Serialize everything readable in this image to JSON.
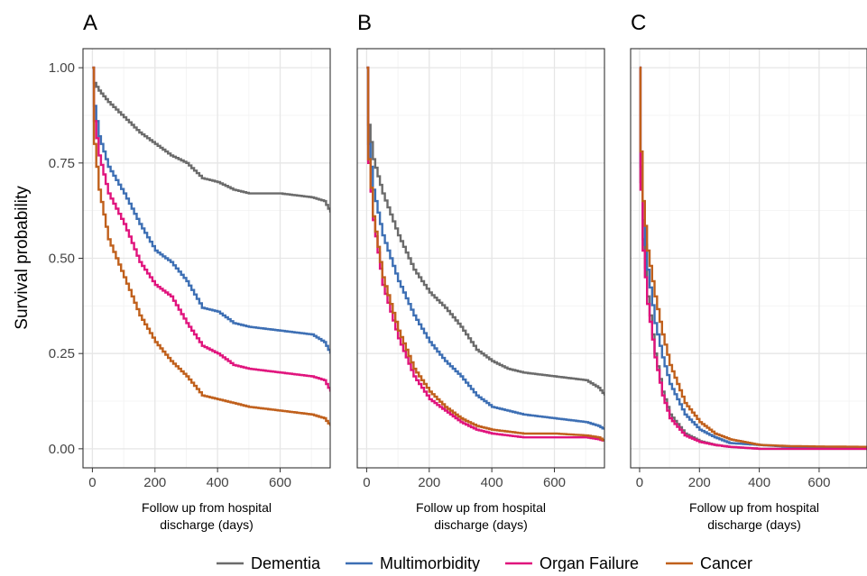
{
  "chart_data": {
    "type": "line",
    "ylabel": "Survival probability",
    "xlabel_line1": "Follow up from hospital",
    "xlabel_line2": "discharge (days)",
    "xlim": [
      -30,
      760
    ],
    "ylim": [
      -0.05,
      1.05
    ],
    "xticks": [
      0,
      200,
      400,
      600
    ],
    "xtick_labels": [
      "0",
      "200",
      "400",
      "600"
    ],
    "yticks": [
      0.0,
      0.25,
      0.5,
      0.75,
      1.0
    ],
    "ytick_labels": [
      "0.00",
      "0.25",
      "0.50",
      "0.75",
      "1.00"
    ],
    "grid": true,
    "legend_position": "bottom",
    "legend": [
      {
        "name": "Dementia",
        "color": "#6b6b6b"
      },
      {
        "name": "Multimorbidity",
        "color": "#3d6fb4"
      },
      {
        "name": "Organ Failure",
        "color": "#e0147d"
      },
      {
        "name": "Cancer",
        "color": "#c0601c"
      }
    ],
    "panels": [
      {
        "label": "A",
        "series": [
          {
            "name": "Dementia",
            "color": "#6b6b6b",
            "points": [
              [
                0,
                1.0
              ],
              [
                5,
                0.96
              ],
              [
                20,
                0.94
              ],
              [
                50,
                0.91
              ],
              [
                100,
                0.87
              ],
              [
                150,
                0.83
              ],
              [
                200,
                0.8
              ],
              [
                250,
                0.77
              ],
              [
                300,
                0.75
              ],
              [
                350,
                0.71
              ],
              [
                400,
                0.7
              ],
              [
                450,
                0.68
              ],
              [
                500,
                0.67
              ],
              [
                600,
                0.67
              ],
              [
                700,
                0.66
              ],
              [
                740,
                0.65
              ],
              [
                760,
                0.62
              ]
            ]
          },
          {
            "name": "Multimorbidity",
            "color": "#3d6fb4",
            "points": [
              [
                0,
                1.0
              ],
              [
                5,
                0.9
              ],
              [
                20,
                0.82
              ],
              [
                50,
                0.74
              ],
              [
                100,
                0.67
              ],
              [
                150,
                0.59
              ],
              [
                200,
                0.52
              ],
              [
                250,
                0.49
              ],
              [
                300,
                0.44
              ],
              [
                350,
                0.37
              ],
              [
                400,
                0.36
              ],
              [
                450,
                0.33
              ],
              [
                500,
                0.32
              ],
              [
                600,
                0.31
              ],
              [
                700,
                0.3
              ],
              [
                740,
                0.28
              ],
              [
                760,
                0.25
              ]
            ]
          },
          {
            "name": "Organ Failure",
            "color": "#e0147d",
            "points": [
              [
                0,
                1.0
              ],
              [
                5,
                0.86
              ],
              [
                20,
                0.77
              ],
              [
                50,
                0.67
              ],
              [
                100,
                0.59
              ],
              [
                150,
                0.49
              ],
              [
                200,
                0.43
              ],
              [
                250,
                0.4
              ],
              [
                300,
                0.33
              ],
              [
                350,
                0.27
              ],
              [
                400,
                0.25
              ],
              [
                450,
                0.22
              ],
              [
                500,
                0.21
              ],
              [
                600,
                0.2
              ],
              [
                700,
                0.19
              ],
              [
                740,
                0.18
              ],
              [
                760,
                0.15
              ]
            ]
          },
          {
            "name": "Cancer",
            "color": "#c0601c",
            "points": [
              [
                0,
                1.0
              ],
              [
                5,
                0.8
              ],
              [
                20,
                0.68
              ],
              [
                50,
                0.55
              ],
              [
                100,
                0.45
              ],
              [
                150,
                0.35
              ],
              [
                200,
                0.28
              ],
              [
                250,
                0.23
              ],
              [
                300,
                0.19
              ],
              [
                350,
                0.14
              ],
              [
                400,
                0.13
              ],
              [
                450,
                0.12
              ],
              [
                500,
                0.11
              ],
              [
                600,
                0.1
              ],
              [
                700,
                0.09
              ],
              [
                740,
                0.08
              ],
              [
                760,
                0.06
              ]
            ]
          }
        ]
      },
      {
        "label": "B",
        "series": [
          {
            "name": "Dementia",
            "color": "#6b6b6b",
            "points": [
              [
                0,
                1.0
              ],
              [
                5,
                0.85
              ],
              [
                20,
                0.76
              ],
              [
                50,
                0.67
              ],
              [
                100,
                0.56
              ],
              [
                150,
                0.47
              ],
              [
                200,
                0.41
              ],
              [
                250,
                0.37
              ],
              [
                300,
                0.32
              ],
              [
                350,
                0.26
              ],
              [
                400,
                0.23
              ],
              [
                450,
                0.21
              ],
              [
                500,
                0.2
              ],
              [
                600,
                0.19
              ],
              [
                700,
                0.18
              ],
              [
                740,
                0.16
              ],
              [
                760,
                0.14
              ]
            ]
          },
          {
            "name": "Multimorbidity",
            "color": "#3d6fb4",
            "points": [
              [
                0,
                1.0
              ],
              [
                5,
                0.8
              ],
              [
                20,
                0.68
              ],
              [
                50,
                0.56
              ],
              [
                100,
                0.44
              ],
              [
                150,
                0.35
              ],
              [
                200,
                0.28
              ],
              [
                250,
                0.23
              ],
              [
                300,
                0.19
              ],
              [
                350,
                0.14
              ],
              [
                400,
                0.11
              ],
              [
                450,
                0.1
              ],
              [
                500,
                0.09
              ],
              [
                600,
                0.08
              ],
              [
                700,
                0.07
              ],
              [
                740,
                0.06
              ],
              [
                760,
                0.05
              ]
            ]
          },
          {
            "name": "Organ Failure",
            "color": "#e0147d",
            "points": [
              [
                0,
                1.0
              ],
              [
                5,
                0.75
              ],
              [
                20,
                0.6
              ],
              [
                50,
                0.43
              ],
              [
                100,
                0.29
              ],
              [
                150,
                0.19
              ],
              [
                200,
                0.13
              ],
              [
                250,
                0.1
              ],
              [
                300,
                0.07
              ],
              [
                350,
                0.05
              ],
              [
                400,
                0.04
              ],
              [
                450,
                0.035
              ],
              [
                500,
                0.03
              ],
              [
                600,
                0.03
              ],
              [
                700,
                0.03
              ],
              [
                740,
                0.025
              ],
              [
                760,
                0.02
              ]
            ]
          },
          {
            "name": "Cancer",
            "color": "#c0601c",
            "points": [
              [
                0,
                1.0
              ],
              [
                5,
                0.76
              ],
              [
                20,
                0.61
              ],
              [
                50,
                0.45
              ],
              [
                100,
                0.31
              ],
              [
                150,
                0.21
              ],
              [
                200,
                0.15
              ],
              [
                250,
                0.11
              ],
              [
                300,
                0.08
              ],
              [
                350,
                0.06
              ],
              [
                400,
                0.05
              ],
              [
                450,
                0.045
              ],
              [
                500,
                0.04
              ],
              [
                600,
                0.04
              ],
              [
                700,
                0.035
              ],
              [
                740,
                0.03
              ],
              [
                760,
                0.02
              ]
            ]
          }
        ]
      },
      {
        "label": "C",
        "series": [
          {
            "name": "Dementia",
            "color": "#6b6b6b",
            "points": [
              [
                0,
                1.0
              ],
              [
                3,
                0.7
              ],
              [
                10,
                0.55
              ],
              [
                25,
                0.4
              ],
              [
                50,
                0.25
              ],
              [
                75,
                0.15
              ],
              [
                100,
                0.09
              ],
              [
                150,
                0.04
              ],
              [
                200,
                0.02
              ],
              [
                250,
                0.01
              ],
              [
                300,
                0.005
              ],
              [
                400,
                0.0
              ],
              [
                760,
                0.0
              ]
            ]
          },
          {
            "name": "Multimorbidity",
            "color": "#3d6fb4",
            "points": [
              [
                0,
                1.0
              ],
              [
                3,
                0.74
              ],
              [
                10,
                0.6
              ],
              [
                25,
                0.47
              ],
              [
                50,
                0.33
              ],
              [
                75,
                0.24
              ],
              [
                100,
                0.17
              ],
              [
                150,
                0.09
              ],
              [
                200,
                0.05
              ],
              [
                250,
                0.03
              ],
              [
                300,
                0.015
              ],
              [
                400,
                0.01
              ],
              [
                500,
                0.005
              ],
              [
                760,
                0.005
              ]
            ]
          },
          {
            "name": "Organ Failure",
            "color": "#e0147d",
            "points": [
              [
                0,
                1.0
              ],
              [
                3,
                0.68
              ],
              [
                10,
                0.52
              ],
              [
                25,
                0.38
              ],
              [
                50,
                0.24
              ],
              [
                75,
                0.14
              ],
              [
                100,
                0.08
              ],
              [
                150,
                0.035
              ],
              [
                200,
                0.018
              ],
              [
                250,
                0.01
              ],
              [
                300,
                0.005
              ],
              [
                400,
                0.0
              ],
              [
                760,
                0.0
              ]
            ]
          },
          {
            "name": "Cancer",
            "color": "#c0601c",
            "points": [
              [
                0,
                1.0
              ],
              [
                3,
                0.78
              ],
              [
                10,
                0.65
              ],
              [
                25,
                0.52
              ],
              [
                50,
                0.4
              ],
              [
                75,
                0.3
              ],
              [
                100,
                0.22
              ],
              [
                150,
                0.12
              ],
              [
                200,
                0.07
              ],
              [
                250,
                0.04
              ],
              [
                300,
                0.025
              ],
              [
                400,
                0.01
              ],
              [
                500,
                0.007
              ],
              [
                600,
                0.006
              ],
              [
                760,
                0.005
              ]
            ]
          }
        ]
      }
    ]
  }
}
